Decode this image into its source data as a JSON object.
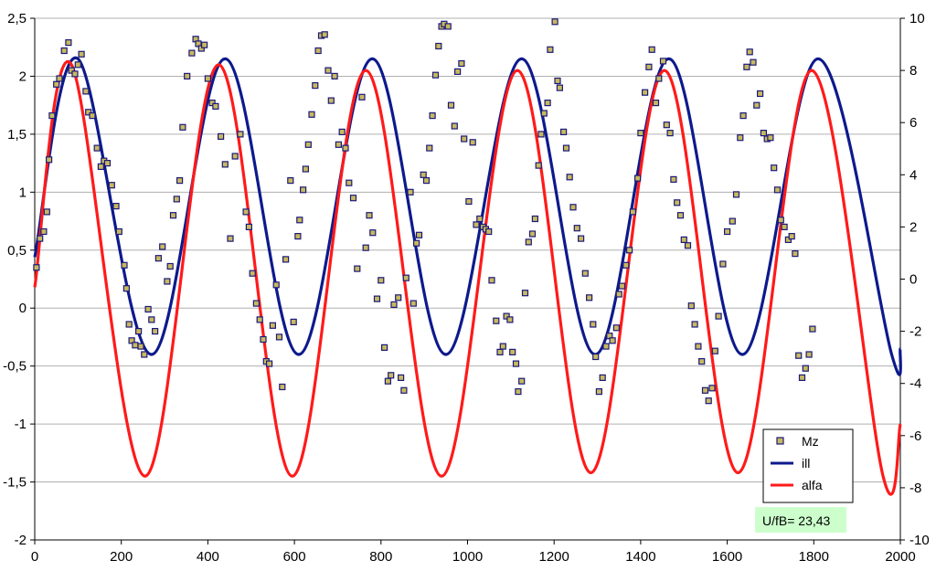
{
  "chart_data": {
    "type": "line",
    "x_axis": {
      "min": 0,
      "max": 2000,
      "ticks": [
        0,
        200,
        400,
        600,
        800,
        1000,
        1200,
        1400,
        1600,
        1800,
        2000
      ]
    },
    "y_left": {
      "min": -2,
      "max": 2.5,
      "ticks": [
        -2,
        -1.5,
        -1,
        -0.5,
        0,
        0.5,
        1,
        1.5,
        2,
        2.5
      ],
      "tick_labels": [
        "-2",
        "-1,5",
        "-1",
        "-0,5",
        "0",
        "0,5",
        "1",
        "1,5",
        "2",
        "2,5"
      ]
    },
    "y_right": {
      "min": -10,
      "max": 10,
      "ticks": [
        -10,
        -8,
        -6,
        -4,
        -2,
        0,
        2,
        4,
        6,
        8,
        10
      ],
      "tick_labels": [
        "-10",
        "-8",
        "-6",
        "-4",
        "-2",
        "0",
        "2",
        "4",
        "6",
        "8",
        "10"
      ]
    },
    "grid": "horizontal",
    "legend_position": "bottom-right",
    "series": [
      {
        "name": "Mz",
        "kind": "scatter",
        "axis": "left",
        "color": "#1a1a7a",
        "fill": "#c8b860",
        "points": [
          [
            4,
            0.35
          ],
          [
            12,
            0.6
          ],
          [
            21,
            0.66
          ],
          [
            28,
            0.83
          ],
          [
            33,
            1.28
          ],
          [
            40,
            1.66
          ],
          [
            50,
            1.93
          ],
          [
            57,
            1.98
          ],
          [
            68,
            2.22
          ],
          [
            78,
            2.29
          ],
          [
            85,
            2.05
          ],
          [
            93,
            2.02
          ],
          [
            100,
            2.1
          ],
          [
            108,
            2.19
          ],
          [
            118,
            1.87
          ],
          [
            124,
            1.69
          ],
          [
            133,
            1.66
          ],
          [
            144,
            1.38
          ],
          [
            153,
            1.22
          ],
          [
            160,
            1.27
          ],
          [
            168,
            1.25
          ],
          [
            178,
            1.06
          ],
          [
            188,
            0.88
          ],
          [
            195,
            0.66
          ],
          [
            207,
            0.37
          ],
          [
            212,
            0.17
          ],
          [
            218,
            -0.14
          ],
          [
            224,
            -0.28
          ],
          [
            232,
            -0.32
          ],
          [
            240,
            -0.2
          ],
          [
            245,
            -0.33
          ],
          [
            253,
            -0.4
          ],
          [
            262,
            -0.01
          ],
          [
            270,
            -0.1
          ],
          [
            278,
            -0.2
          ],
          [
            286,
            0.43
          ],
          [
            295,
            0.53
          ],
          [
            306,
            0.23
          ],
          [
            313,
            0.36
          ],
          [
            320,
            0.8
          ],
          [
            328,
            0.94
          ],
          [
            335,
            1.1
          ],
          [
            342,
            1.56
          ],
          [
            352,
            2.0
          ],
          [
            363,
            2.2
          ],
          [
            372,
            2.32
          ],
          [
            378,
            2.28
          ],
          [
            385,
            2.24
          ],
          [
            392,
            2.27
          ],
          [
            400,
            1.98
          ],
          [
            410,
            1.77
          ],
          [
            418,
            1.74
          ],
          [
            430,
            1.48
          ],
          [
            440,
            1.24
          ],
          [
            452,
            0.6
          ],
          [
            463,
            1.31
          ],
          [
            475,
            1.5
          ],
          [
            488,
            0.83
          ],
          [
            495,
            0.7
          ],
          [
            503,
            0.3
          ],
          [
            512,
            0.04
          ],
          [
            520,
            -0.1
          ],
          [
            528,
            -0.27
          ],
          [
            535,
            -0.46
          ],
          [
            542,
            -0.48
          ],
          [
            550,
            -0.15
          ],
          [
            558,
            0.2
          ],
          [
            565,
            -0.25
          ],
          [
            572,
            -0.68
          ],
          [
            580,
            0.42
          ],
          [
            591,
            1.1
          ],
          [
            598,
            -0.12
          ],
          [
            608,
            0.62
          ],
          [
            612,
            0.76
          ],
          [
            620,
            1.02
          ],
          [
            626,
            1.2
          ],
          [
            632,
            1.41
          ],
          [
            640,
            1.67
          ],
          [
            648,
            1.92
          ],
          [
            655,
            2.22
          ],
          [
            662,
            2.35
          ],
          [
            670,
            2.36
          ],
          [
            678,
            2.05
          ],
          [
            685,
            1.79
          ],
          [
            693,
            2.0
          ],
          [
            702,
            1.41
          ],
          [
            710,
            1.52
          ],
          [
            718,
            1.38
          ],
          [
            726,
            1.08
          ],
          [
            736,
            0.95
          ],
          [
            745,
            0.34
          ],
          [
            756,
            1.82
          ],
          [
            765,
            0.52
          ],
          [
            773,
            0.8
          ],
          [
            781,
            0.65
          ],
          [
            791,
            0.08
          ],
          [
            800,
            0.24
          ],
          [
            808,
            -0.34
          ],
          [
            816,
            -0.63
          ],
          [
            823,
            -0.58
          ],
          [
            830,
            0.03
          ],
          [
            840,
            0.09
          ],
          [
            846,
            -0.6
          ],
          [
            853,
            -0.71
          ],
          [
            858,
            0.26
          ],
          [
            868,
            1.0
          ],
          [
            875,
            0.04
          ],
          [
            882,
            0.56
          ],
          [
            888,
            0.63
          ],
          [
            898,
            1.15
          ],
          [
            905,
            1.1
          ],
          [
            912,
            1.38
          ],
          [
            919,
            1.66
          ],
          [
            926,
            2.01
          ],
          [
            933,
            2.26
          ],
          [
            940,
            2.43
          ],
          [
            946,
            2.45
          ],
          [
            955,
            2.43
          ],
          [
            962,
            1.75
          ],
          [
            970,
            1.57
          ],
          [
            977,
            2.04
          ],
          [
            986,
            2.11
          ],
          [
            992,
            1.46
          ],
          [
            1003,
            0.92
          ],
          [
            1012,
            1.43
          ],
          [
            1020,
            0.72
          ],
          [
            1028,
            0.77
          ],
          [
            1036,
            0.7
          ],
          [
            1042,
            0.68
          ],
          [
            1049,
            0.66
          ],
          [
            1056,
            0.24
          ],
          [
            1066,
            -0.11
          ],
          [
            1075,
            -0.38
          ],
          [
            1082,
            -0.33
          ],
          [
            1090,
            -0.07
          ],
          [
            1098,
            -0.1
          ],
          [
            1104,
            -0.38
          ],
          [
            1112,
            -0.48
          ],
          [
            1117,
            -0.72
          ],
          [
            1125,
            -0.63
          ],
          [
            1133,
            0.13
          ],
          [
            1141,
            0.57
          ],
          [
            1150,
            0.64
          ],
          [
            1156,
            0.77
          ],
          [
            1164,
            1.23
          ],
          [
            1170,
            1.5
          ],
          [
            1177,
            1.68
          ],
          [
            1185,
            1.77
          ],
          [
            1191,
            2.23
          ],
          [
            1202,
            2.47
          ],
          [
            1208,
            1.96
          ],
          [
            1213,
            1.9
          ],
          [
            1222,
            1.52
          ],
          [
            1228,
            1.38
          ],
          [
            1236,
            1.13
          ],
          [
            1244,
            0.87
          ],
          [
            1253,
            0.69
          ],
          [
            1262,
            0.6
          ],
          [
            1272,
            0.3
          ],
          [
            1281,
            0.09
          ],
          [
            1290,
            -0.14
          ],
          [
            1296,
            -0.42
          ],
          [
            1304,
            -0.72
          ],
          [
            1312,
            -0.6
          ],
          [
            1320,
            -0.33
          ],
          [
            1328,
            -0.24
          ],
          [
            1335,
            -0.28
          ],
          [
            1344,
            -0.17
          ],
          [
            1350,
            0.12
          ],
          [
            1357,
            0.19
          ],
          [
            1366,
            0.37
          ],
          [
            1374,
            0.5
          ],
          [
            1382,
            0.83
          ],
          [
            1393,
            1.12
          ],
          [
            1400,
            1.51
          ],
          [
            1410,
            1.86
          ],
          [
            1419,
            2.08
          ],
          [
            1426,
            2.23
          ],
          [
            1435,
            1.77
          ],
          [
            1442,
            1.98
          ],
          [
            1452,
            2.13
          ],
          [
            1460,
            1.58
          ],
          [
            1468,
            1.51
          ],
          [
            1476,
            1.11
          ],
          [
            1484,
            0.91
          ],
          [
            1492,
            0.8
          ],
          [
            1500,
            0.59
          ],
          [
            1509,
            0.54
          ],
          [
            1517,
            0.02
          ],
          [
            1525,
            -0.14
          ],
          [
            1533,
            -0.33
          ],
          [
            1541,
            -0.46
          ],
          [
            1549,
            -0.71
          ],
          [
            1557,
            -0.8
          ],
          [
            1565,
            -0.69
          ],
          [
            1572,
            -0.37
          ],
          [
            1580,
            -0.07
          ],
          [
            1590,
            0.38
          ],
          [
            1600,
            0.66
          ],
          [
            1612,
            0.75
          ],
          [
            1621,
            0.98
          ],
          [
            1630,
            1.47
          ],
          [
            1637,
            1.66
          ],
          [
            1645,
            2.08
          ],
          [
            1652,
            2.21
          ],
          [
            1660,
            2.12
          ],
          [
            1668,
            1.75
          ],
          [
            1676,
            1.85
          ],
          [
            1684,
            1.51
          ],
          [
            1692,
            1.46
          ],
          [
            1700,
            1.47
          ],
          [
            1708,
            1.21
          ],
          [
            1716,
            1.02
          ],
          [
            1724,
            0.76
          ],
          [
            1732,
            0.7
          ],
          [
            1741,
            0.59
          ],
          [
            1749,
            0.62
          ],
          [
            1757,
            0.47
          ],
          [
            1765,
            -0.41
          ],
          [
            1773,
            -0.6
          ],
          [
            1781,
            -0.52
          ],
          [
            1789,
            -0.4
          ],
          [
            1797,
            -0.18
          ]
        ]
      },
      {
        "name": "ill",
        "kind": "line",
        "axis": "left",
        "color": "#0d1a8c",
        "points": [
          [
            0,
            0.44
          ],
          [
            100,
            2.15
          ],
          [
            270,
            -0.4
          ],
          [
            440,
            2.15
          ],
          [
            610,
            -0.4
          ],
          [
            780,
            2.15
          ],
          [
            950,
            -0.4
          ],
          [
            1125,
            2.15
          ],
          [
            1295,
            -0.4
          ],
          [
            1465,
            2.15
          ],
          [
            1635,
            -0.4
          ],
          [
            1810,
            2.15
          ],
          [
            1980,
            -0.4
          ],
          [
            2000,
            -0.35
          ]
        ]
      },
      {
        "name": "alfa",
        "kind": "line",
        "axis": "left",
        "color": "#ff1a1a",
        "points": [
          [
            0,
            0.18
          ],
          [
            85,
            2.1
          ],
          [
            255,
            -1.45
          ],
          [
            425,
            2.1
          ],
          [
            595,
            -1.45
          ],
          [
            765,
            2.05
          ],
          [
            940,
            -1.45
          ],
          [
            1115,
            2.05
          ],
          [
            1285,
            -1.42
          ],
          [
            1455,
            2.05
          ],
          [
            1625,
            -1.42
          ],
          [
            1795,
            2.05
          ],
          [
            1960,
            -1.45
          ],
          [
            2000,
            -1.0
          ]
        ]
      }
    ],
    "annotation": "U/fB= 23,43"
  }
}
